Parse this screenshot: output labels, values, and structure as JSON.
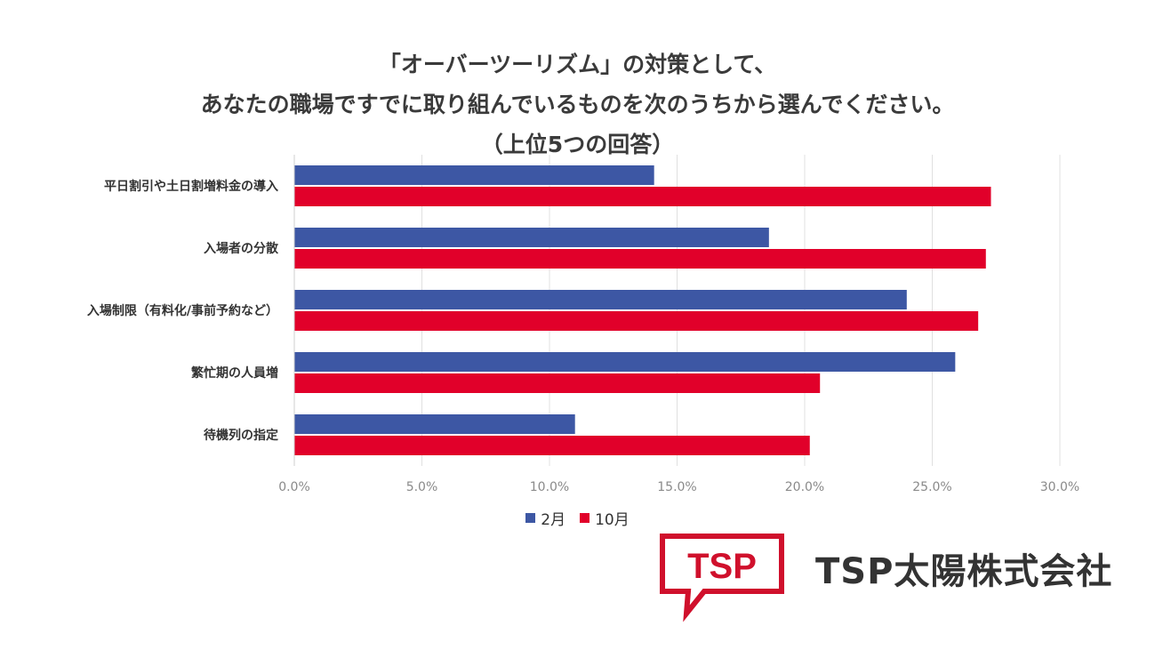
{
  "title": {
    "line1": "「オーバーツーリズム」の対策として、",
    "line2": "あなたの職場ですでに取り組んでいるものを次のうちから選んでください。",
    "line3": "（上位5つの回答）"
  },
  "colors": {
    "series1": "#3d57a4",
    "series2": "#e1002a",
    "grid": "#e0e0e0",
    "logo": "#d0102c"
  },
  "chart_data": {
    "type": "bar",
    "orientation": "horizontal",
    "title": "「オーバーツーリズム」の対策として、あなたの職場ですでに取り組んでいるものを次のうちから選んでください。（上位5つの回答）",
    "categories": [
      "平日割引や土日割増料金の導入",
      "入場者の分散",
      "入場制限（有料化/事前予約など）",
      "繁忙期の人員増",
      "待機列の指定"
    ],
    "series": [
      {
        "name": "2月",
        "values": [
          14.1,
          18.6,
          24.0,
          25.9,
          11.0
        ]
      },
      {
        "name": "10月",
        "values": [
          27.3,
          27.1,
          26.8,
          20.6,
          20.2
        ]
      }
    ],
    "xlim": [
      0,
      30
    ],
    "xticks": [
      "0.0%",
      "5.0%",
      "10.0%",
      "15.0%",
      "20.0%",
      "25.0%",
      "30.0%"
    ],
    "xticks_values": [
      0,
      5,
      10,
      15,
      20,
      25,
      30
    ],
    "grid": true,
    "legend": "bottom-center"
  },
  "legend": {
    "items": [
      "2月",
      "10月"
    ]
  },
  "logo": {
    "mark": "TSP",
    "company": "TSP太陽株式会社"
  }
}
